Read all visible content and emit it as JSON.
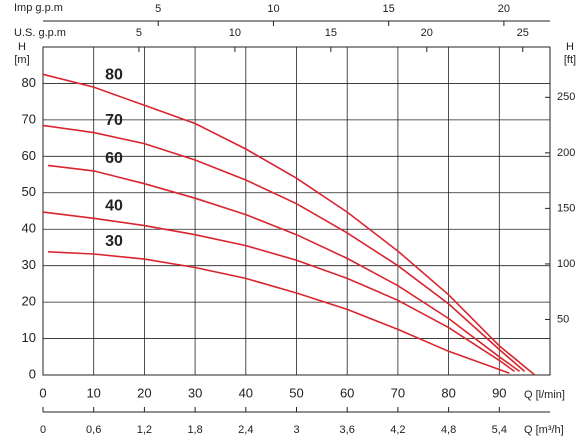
{
  "chart_data": {
    "type": "line",
    "x_label": "Q [l/min]",
    "xlim": [
      0,
      100
    ],
    "xticks": [
      0,
      10,
      20,
      30,
      40,
      50,
      60,
      70,
      80,
      90
    ],
    "y_label_top": "H",
    "y_label": "[m]",
    "ylim": [
      0,
      90
    ],
    "yticks": [
      0,
      10,
      20,
      30,
      40,
      50,
      60,
      70,
      80
    ],
    "y2_label_top": "H",
    "y2_label": "[ft]",
    "y2lim": [
      0,
      295.3
    ],
    "y2ticks": [
      50,
      100,
      150,
      200,
      250
    ],
    "x_m3h_label": "Q [m³/h]",
    "x_m3h_lim": [
      0,
      6
    ],
    "x_m3h_ticks": [
      0,
      {
        "value": 0.6,
        "label": "0,6"
      },
      {
        "value": 1.2,
        "label": "1,2"
      },
      {
        "value": 1.8,
        "label": "1,8"
      },
      {
        "value": 2.4,
        "label": "2,4"
      },
      3,
      {
        "value": 3.6,
        "label": "3,6"
      },
      {
        "value": 4.2,
        "label": "4,2"
      },
      {
        "value": 4.8,
        "label": "4,8"
      },
      {
        "value": 5.4,
        "label": "5,4"
      }
    ],
    "x_us_label": "U.S. g.p.m",
    "x_us_lim": [
      0,
      26.42
    ],
    "x_us_ticks": [
      5,
      10,
      15,
      20,
      25
    ],
    "x_imp_label": "Imp g.p.m",
    "x_imp_lim": [
      0,
      22.0
    ],
    "x_imp_ticks": [
      5,
      10,
      15,
      20
    ],
    "grid": true,
    "series": [
      {
        "name": "80",
        "color": "#d9252e",
        "x": [
          0,
          10,
          20,
          30,
          40,
          50,
          60,
          70,
          80,
          90,
          97
        ],
        "values": [
          82.5,
          79,
          74,
          69,
          62,
          54,
          44.7,
          34,
          22,
          8,
          0
        ]
      },
      {
        "name": "70",
        "color": "#d9252e",
        "x": [
          0,
          10,
          20,
          30,
          40,
          50,
          60,
          70,
          80,
          90,
          95
        ],
        "values": [
          68.5,
          66.5,
          63.5,
          59,
          53.5,
          47,
          39,
          30,
          19.5,
          7,
          1
        ]
      },
      {
        "name": "60",
        "color": "#d9252e",
        "x": [
          1,
          10,
          20,
          30,
          40,
          50,
          60,
          70,
          80,
          90,
          94
        ],
        "values": [
          57.5,
          56,
          52.5,
          48.5,
          44,
          38.5,
          32,
          24.5,
          15.5,
          5,
          1
        ]
      },
      {
        "name": "40",
        "color": "#d9252e",
        "x": [
          0,
          10,
          20,
          30,
          40,
          50,
          60,
          70,
          80,
          90,
          93
        ],
        "values": [
          44.7,
          43,
          41,
          38.5,
          35.5,
          31.5,
          26.5,
          20.5,
          13,
          4,
          1
        ]
      },
      {
        "name": "30",
        "color": "#d9252e",
        "x": [
          1,
          10,
          20,
          30,
          40,
          50,
          60,
          70,
          80,
          90,
          92
        ],
        "values": [
          33.8,
          33.2,
          31.8,
          29.5,
          26.5,
          22.5,
          18,
          12.5,
          6.5,
          1.5,
          0.5
        ]
      }
    ]
  }
}
